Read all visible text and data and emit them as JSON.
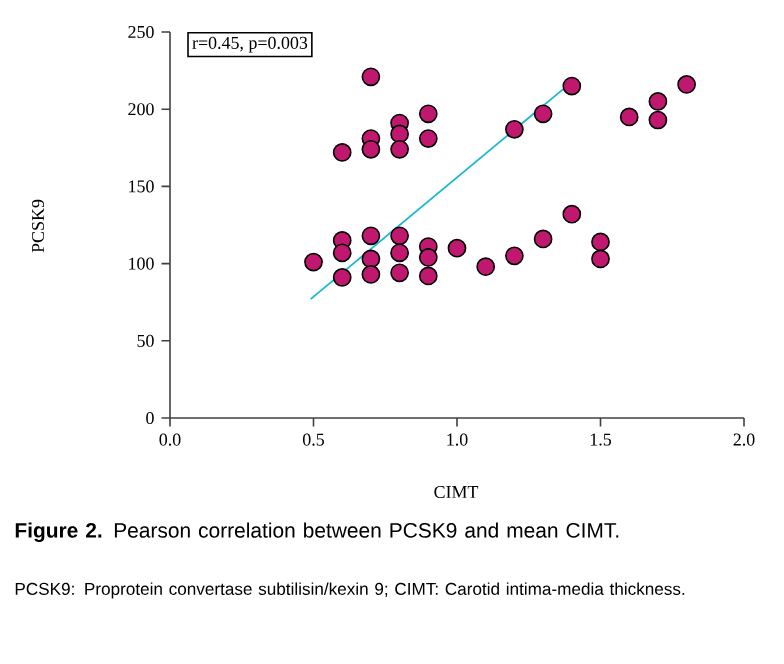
{
  "chart_data": {
    "type": "scatter",
    "title": "**Figure 2.** Pearson correlation between PCSK9 and mean CIMT.",
    "xlabel": "CIMT",
    "ylabel": "PCSK9",
    "annotations": [
      "r=0.45, p=0.003",
      "PCSK9: Proprotein convertase subtilisin/kexin 9; CIMT: Carotid intima-media thickness."
    ],
    "series": [
      {
        "color": "#c0186e",
        "x": [
          0.5,
          0.6,
          0.6,
          0.6,
          0.7,
          0.7,
          0.7,
          0.8,
          0.8,
          0.8,
          0.9,
          0.9,
          0.9,
          1.0,
          1.1,
          1.2,
          1.3,
          1.5,
          1.5,
          0.7,
          0.6,
          0.7,
          0.7,
          0.8,
          0.8,
          0.8,
          0.9,
          0.9,
          1.2,
          1.3,
          1.4,
          1.4,
          1.6,
          1.7,
          1.7,
          1.8
        ],
        "values": [
          101,
          115,
          107,
          91,
          118,
          103,
          93,
          118,
          107,
          94,
          111,
          104,
          92,
          110,
          98,
          105,
          116,
          114,
          103,
          221,
          172,
          181,
          174,
          191,
          184,
          174,
          197,
          181,
          187,
          197,
          215,
          132,
          195,
          205,
          193,
          216
        ]
      },
      {
        "type": "line",
        "marker": "none",
        "color": "#1ab8d0",
        "x": [
          0.49,
          1.37
        ],
        "values": [
          77,
          213
        ]
      }
    ],
    "marker": "circle",
    "xlim": [
      0,
      2
    ],
    "ylim": [
      0,
      250
    ],
    "xticks": [
      {
        "value": 0,
        "label": "0.0"
      },
      {
        "value": 0.5,
        "label": "0.5"
      },
      {
        "value": 1,
        "label": "1.0"
      },
      {
        "value": 1.5,
        "label": "1.5"
      },
      {
        "value": 2,
        "label": "2.0"
      }
    ],
    "yticks": [
      0,
      50,
      100,
      150,
      200,
      250
    ]
  }
}
